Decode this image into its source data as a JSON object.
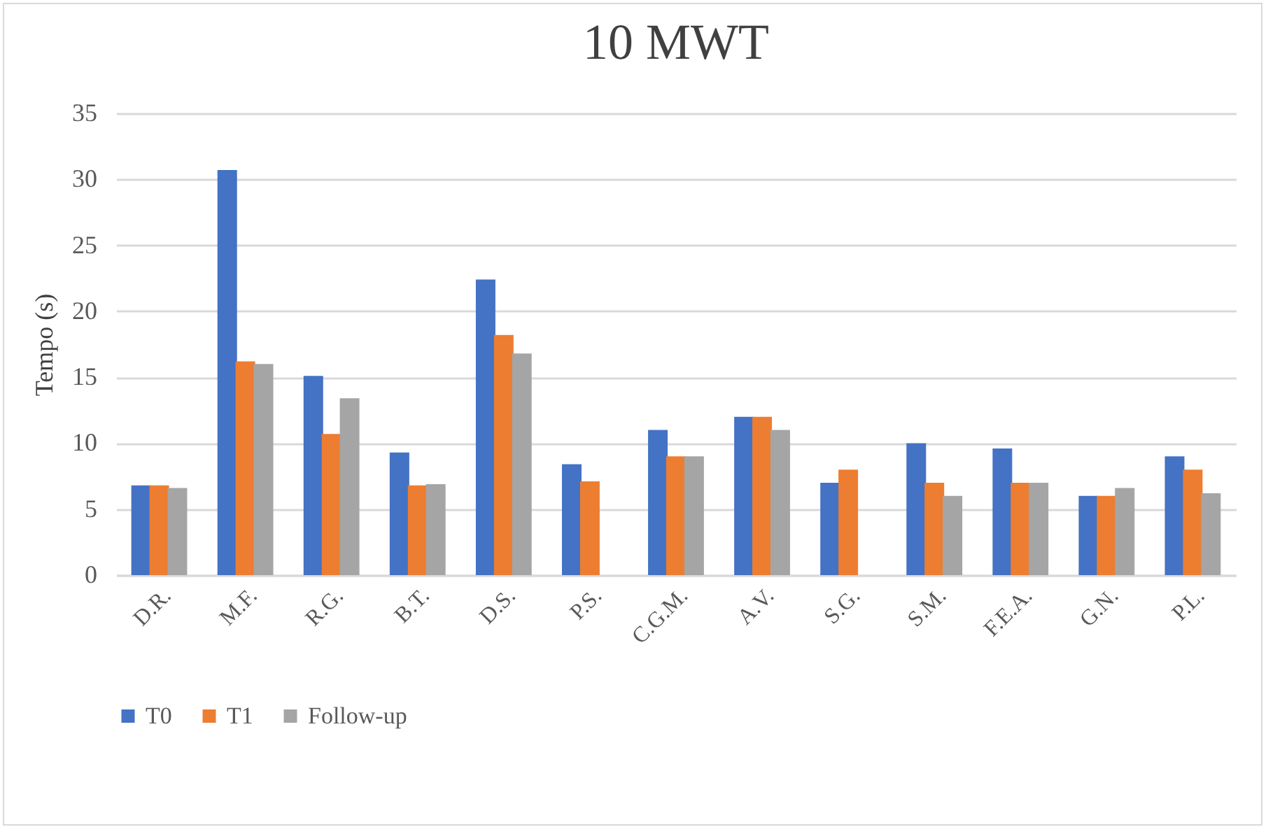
{
  "chart_data": {
    "type": "bar",
    "title": "10 MWT",
    "ylabel": "Tempo (s)",
    "categories": [
      "D.R.",
      "M.F.",
      "R.G.",
      "B.T.",
      "D.S.",
      "P.S.",
      "C.G.M.",
      "A.V.",
      "S.G.",
      "S.M.",
      "F.E.A.",
      "G.N.",
      "P.L."
    ],
    "series": [
      {
        "name": "T0",
        "color": "#4472c4",
        "values": [
          6.8,
          30.7,
          15.1,
          9.3,
          22.4,
          8.4,
          11.0,
          12.0,
          7.0,
          10.0,
          9.6,
          6.0,
          9.0
        ]
      },
      {
        "name": "T1",
        "color": "#ed7d31",
        "values": [
          6.8,
          16.2,
          10.7,
          6.8,
          18.2,
          7.1,
          9.0,
          12.0,
          8.0,
          7.0,
          7.0,
          6.0,
          8.0
        ]
      },
      {
        "name": "Follow-up",
        "color": "#a5a5a5",
        "values": [
          6.6,
          16.0,
          13.4,
          6.9,
          16.8,
          null,
          9.0,
          11.0,
          null,
          6.0,
          7.0,
          6.6,
          6.2
        ]
      }
    ],
    "ylim": [
      0,
      35
    ],
    "yticks": [
      0,
      5,
      10,
      15,
      20,
      25,
      30,
      35
    ],
    "grid": "y",
    "legend": "bottom"
  }
}
